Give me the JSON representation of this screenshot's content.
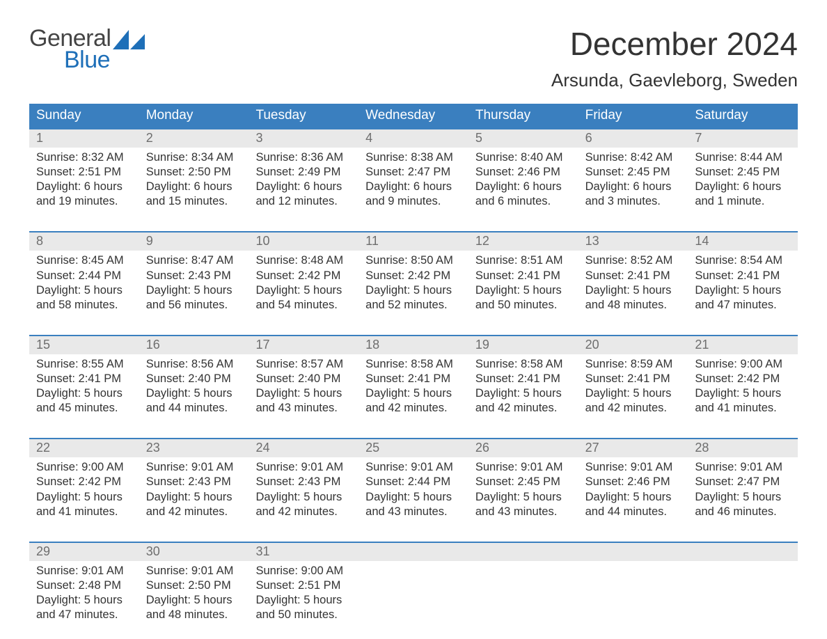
{
  "logo": {
    "word1": "General",
    "word2": "Blue",
    "sail_color": "#1e6fb8",
    "text_color_1": "#444",
    "text_color_2": "#1e6fb8"
  },
  "title": "December 2024",
  "location": "Arsunda, Gaevleborg, Sweden",
  "colors": {
    "header_bg": "#3a7fbf",
    "header_text": "#ffffff",
    "daynum_bg": "#e9e9e9",
    "daynum_text": "#6e6e6e",
    "week_border": "#3a7fbf",
    "body_text": "#333333",
    "background": "#ffffff"
  },
  "typography": {
    "title_fontsize": 46,
    "location_fontsize": 26,
    "header_fontsize": 19,
    "daynum_fontsize": 18,
    "cell_fontsize": 16.5,
    "font_family": "Arial"
  },
  "layout": {
    "columns": 7,
    "rows": 5,
    "doc_width": 1188,
    "doc_height": 918
  },
  "day_headers": [
    "Sunday",
    "Monday",
    "Tuesday",
    "Wednesday",
    "Thursday",
    "Friday",
    "Saturday"
  ],
  "weeks": [
    {
      "days": [
        {
          "n": "1",
          "sunrise": "Sunrise: 8:32 AM",
          "sunset": "Sunset: 2:51 PM",
          "d1": "Daylight: 6 hours",
          "d2": "and 19 minutes."
        },
        {
          "n": "2",
          "sunrise": "Sunrise: 8:34 AM",
          "sunset": "Sunset: 2:50 PM",
          "d1": "Daylight: 6 hours",
          "d2": "and 15 minutes."
        },
        {
          "n": "3",
          "sunrise": "Sunrise: 8:36 AM",
          "sunset": "Sunset: 2:49 PM",
          "d1": "Daylight: 6 hours",
          "d2": "and 12 minutes."
        },
        {
          "n": "4",
          "sunrise": "Sunrise: 8:38 AM",
          "sunset": "Sunset: 2:47 PM",
          "d1": "Daylight: 6 hours",
          "d2": "and 9 minutes."
        },
        {
          "n": "5",
          "sunrise": "Sunrise: 8:40 AM",
          "sunset": "Sunset: 2:46 PM",
          "d1": "Daylight: 6 hours",
          "d2": "and 6 minutes."
        },
        {
          "n": "6",
          "sunrise": "Sunrise: 8:42 AM",
          "sunset": "Sunset: 2:45 PM",
          "d1": "Daylight: 6 hours",
          "d2": "and 3 minutes."
        },
        {
          "n": "7",
          "sunrise": "Sunrise: 8:44 AM",
          "sunset": "Sunset: 2:45 PM",
          "d1": "Daylight: 6 hours",
          "d2": "and 1 minute."
        }
      ]
    },
    {
      "days": [
        {
          "n": "8",
          "sunrise": "Sunrise: 8:45 AM",
          "sunset": "Sunset: 2:44 PM",
          "d1": "Daylight: 5 hours",
          "d2": "and 58 minutes."
        },
        {
          "n": "9",
          "sunrise": "Sunrise: 8:47 AM",
          "sunset": "Sunset: 2:43 PM",
          "d1": "Daylight: 5 hours",
          "d2": "and 56 minutes."
        },
        {
          "n": "10",
          "sunrise": "Sunrise: 8:48 AM",
          "sunset": "Sunset: 2:42 PM",
          "d1": "Daylight: 5 hours",
          "d2": "and 54 minutes."
        },
        {
          "n": "11",
          "sunrise": "Sunrise: 8:50 AM",
          "sunset": "Sunset: 2:42 PM",
          "d1": "Daylight: 5 hours",
          "d2": "and 52 minutes."
        },
        {
          "n": "12",
          "sunrise": "Sunrise: 8:51 AM",
          "sunset": "Sunset: 2:41 PM",
          "d1": "Daylight: 5 hours",
          "d2": "and 50 minutes."
        },
        {
          "n": "13",
          "sunrise": "Sunrise: 8:52 AM",
          "sunset": "Sunset: 2:41 PM",
          "d1": "Daylight: 5 hours",
          "d2": "and 48 minutes."
        },
        {
          "n": "14",
          "sunrise": "Sunrise: 8:54 AM",
          "sunset": "Sunset: 2:41 PM",
          "d1": "Daylight: 5 hours",
          "d2": "and 47 minutes."
        }
      ]
    },
    {
      "days": [
        {
          "n": "15",
          "sunrise": "Sunrise: 8:55 AM",
          "sunset": "Sunset: 2:41 PM",
          "d1": "Daylight: 5 hours",
          "d2": "and 45 minutes."
        },
        {
          "n": "16",
          "sunrise": "Sunrise: 8:56 AM",
          "sunset": "Sunset: 2:40 PM",
          "d1": "Daylight: 5 hours",
          "d2": "and 44 minutes."
        },
        {
          "n": "17",
          "sunrise": "Sunrise: 8:57 AM",
          "sunset": "Sunset: 2:40 PM",
          "d1": "Daylight: 5 hours",
          "d2": "and 43 minutes."
        },
        {
          "n": "18",
          "sunrise": "Sunrise: 8:58 AM",
          "sunset": "Sunset: 2:41 PM",
          "d1": "Daylight: 5 hours",
          "d2": "and 42 minutes."
        },
        {
          "n": "19",
          "sunrise": "Sunrise: 8:58 AM",
          "sunset": "Sunset: 2:41 PM",
          "d1": "Daylight: 5 hours",
          "d2": "and 42 minutes."
        },
        {
          "n": "20",
          "sunrise": "Sunrise: 8:59 AM",
          "sunset": "Sunset: 2:41 PM",
          "d1": "Daylight: 5 hours",
          "d2": "and 42 minutes."
        },
        {
          "n": "21",
          "sunrise": "Sunrise: 9:00 AM",
          "sunset": "Sunset: 2:42 PM",
          "d1": "Daylight: 5 hours",
          "d2": "and 41 minutes."
        }
      ]
    },
    {
      "days": [
        {
          "n": "22",
          "sunrise": "Sunrise: 9:00 AM",
          "sunset": "Sunset: 2:42 PM",
          "d1": "Daylight: 5 hours",
          "d2": "and 41 minutes."
        },
        {
          "n": "23",
          "sunrise": "Sunrise: 9:01 AM",
          "sunset": "Sunset: 2:43 PM",
          "d1": "Daylight: 5 hours",
          "d2": "and 42 minutes."
        },
        {
          "n": "24",
          "sunrise": "Sunrise: 9:01 AM",
          "sunset": "Sunset: 2:43 PM",
          "d1": "Daylight: 5 hours",
          "d2": "and 42 minutes."
        },
        {
          "n": "25",
          "sunrise": "Sunrise: 9:01 AM",
          "sunset": "Sunset: 2:44 PM",
          "d1": "Daylight: 5 hours",
          "d2": "and 43 minutes."
        },
        {
          "n": "26",
          "sunrise": "Sunrise: 9:01 AM",
          "sunset": "Sunset: 2:45 PM",
          "d1": "Daylight: 5 hours",
          "d2": "and 43 minutes."
        },
        {
          "n": "27",
          "sunrise": "Sunrise: 9:01 AM",
          "sunset": "Sunset: 2:46 PM",
          "d1": "Daylight: 5 hours",
          "d2": "and 44 minutes."
        },
        {
          "n": "28",
          "sunrise": "Sunrise: 9:01 AM",
          "sunset": "Sunset: 2:47 PM",
          "d1": "Daylight: 5 hours",
          "d2": "and 46 minutes."
        }
      ]
    },
    {
      "days": [
        {
          "n": "29",
          "sunrise": "Sunrise: 9:01 AM",
          "sunset": "Sunset: 2:48 PM",
          "d1": "Daylight: 5 hours",
          "d2": "and 47 minutes."
        },
        {
          "n": "30",
          "sunrise": "Sunrise: 9:01 AM",
          "sunset": "Sunset: 2:50 PM",
          "d1": "Daylight: 5 hours",
          "d2": "and 48 minutes."
        },
        {
          "n": "31",
          "sunrise": "Sunrise: 9:00 AM",
          "sunset": "Sunset: 2:51 PM",
          "d1": "Daylight: 5 hours",
          "d2": "and 50 minutes."
        },
        {
          "n": "",
          "sunrise": "",
          "sunset": "",
          "d1": "",
          "d2": ""
        },
        {
          "n": "",
          "sunrise": "",
          "sunset": "",
          "d1": "",
          "d2": ""
        },
        {
          "n": "",
          "sunrise": "",
          "sunset": "",
          "d1": "",
          "d2": ""
        },
        {
          "n": "",
          "sunrise": "",
          "sunset": "",
          "d1": "",
          "d2": ""
        }
      ]
    }
  ]
}
